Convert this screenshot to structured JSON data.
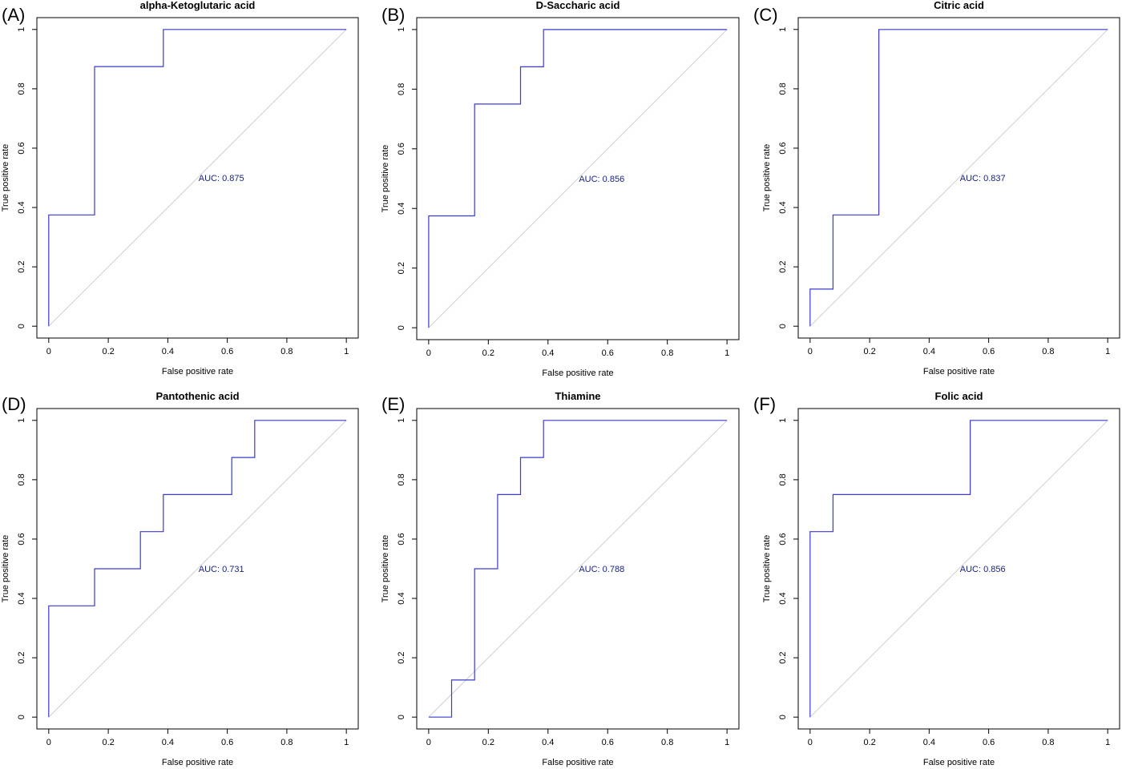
{
  "chart_data": [
    {
      "type": "line",
      "panel": "(A)",
      "title": "alpha-Ketoglutaric acid",
      "xlabel": "False positive rate",
      "ylabel": "True positive rate",
      "xlim": [
        0,
        1
      ],
      "ylim": [
        0,
        1
      ],
      "xticks": [
        "0",
        "0.2",
        "0.4",
        "0.6",
        "0.8",
        "1"
      ],
      "yticks": [
        "0",
        "0.2",
        "0.4",
        "0.6",
        "0.8",
        "1"
      ],
      "annotation": "AUC: 0.875",
      "x": [
        0,
        0,
        0.154,
        0.154,
        0.385,
        0.385,
        1
      ],
      "y": [
        0,
        0.375,
        0.375,
        0.875,
        0.875,
        1,
        1
      ]
    },
    {
      "type": "line",
      "panel": "(B)",
      "title": "D-Saccharic acid",
      "xlabel": "False positive rate",
      "ylabel": "True positive rate",
      "xlim": [
        0,
        1
      ],
      "ylim": [
        0,
        1
      ],
      "xticks": [
        "0",
        "0.2",
        "0.4",
        "0.6",
        "0.8",
        "1"
      ],
      "yticks": [
        "0",
        "0.2",
        "0.4",
        "0.6",
        "0.8",
        "1"
      ],
      "annotation": "AUC: 0.856",
      "x": [
        0,
        0,
        0.154,
        0.154,
        0.308,
        0.308,
        0.385,
        0.385,
        1
      ],
      "y": [
        0,
        0.375,
        0.375,
        0.75,
        0.75,
        0.875,
        0.875,
        1,
        1
      ]
    },
    {
      "type": "line",
      "panel": "(C)",
      "title": "Citric acid",
      "xlabel": "False positive rate",
      "ylabel": "True positive rate",
      "xlim": [
        0,
        1
      ],
      "ylim": [
        0,
        1
      ],
      "xticks": [
        "0",
        "0.2",
        "0.4",
        "0.6",
        "0.8",
        "1"
      ],
      "yticks": [
        "0",
        "0.2",
        "0.4",
        "0.6",
        "0.8",
        "1"
      ],
      "annotation": "AUC: 0.837",
      "x": [
        0,
        0,
        0.077,
        0.077,
        0.231,
        0.231,
        1
      ],
      "y": [
        0,
        0.125,
        0.125,
        0.375,
        0.375,
        1,
        1
      ]
    },
    {
      "type": "line",
      "panel": "(D)",
      "title": "Pantothenic acid",
      "xlabel": "False positive rate",
      "ylabel": "True positive rate",
      "xlim": [
        0,
        1
      ],
      "ylim": [
        0,
        1
      ],
      "xticks": [
        "0",
        "0.2",
        "0.4",
        "0.6",
        "0.8",
        "1"
      ],
      "yticks": [
        "0",
        "0.2",
        "0.4",
        "0.6",
        "0.8",
        "1"
      ],
      "annotation": "AUC: 0.731",
      "x": [
        0,
        0,
        0.154,
        0.154,
        0.308,
        0.308,
        0.385,
        0.385,
        0.615,
        0.615,
        0.692,
        0.692,
        1
      ],
      "y": [
        0,
        0.375,
        0.375,
        0.5,
        0.5,
        0.625,
        0.625,
        0.75,
        0.75,
        0.875,
        0.875,
        1,
        1
      ]
    },
    {
      "type": "line",
      "panel": "(E)",
      "title": "Thiamine",
      "xlabel": "False positive rate",
      "ylabel": "True positive rate",
      "xlim": [
        0,
        1
      ],
      "ylim": [
        0,
        1
      ],
      "xticks": [
        "0",
        "0.2",
        "0.4",
        "0.6",
        "0.8",
        "1"
      ],
      "yticks": [
        "0",
        "0.2",
        "0.4",
        "0.6",
        "0.8",
        "1"
      ],
      "annotation": "AUC: 0.788",
      "x": [
        0,
        0.077,
        0.077,
        0.154,
        0.154,
        0.231,
        0.231,
        0.308,
        0.308,
        0.385,
        0.385,
        1
      ],
      "y": [
        0,
        0,
        0.125,
        0.125,
        0.5,
        0.5,
        0.75,
        0.75,
        0.875,
        0.875,
        1,
        1
      ]
    },
    {
      "type": "line",
      "panel": "(F)",
      "title": "Folic acid",
      "xlabel": "False positive rate",
      "ylabel": "True positive rate",
      "xlim": [
        0,
        1
      ],
      "ylim": [
        0,
        1
      ],
      "xticks": [
        "0",
        "0.2",
        "0.4",
        "0.6",
        "0.8",
        "1"
      ],
      "yticks": [
        "0",
        "0.2",
        "0.4",
        "0.6",
        "0.8",
        "1"
      ],
      "annotation": "AUC: 0.856",
      "x": [
        0,
        0,
        0.077,
        0.077,
        0.538,
        0.538,
        1
      ],
      "y": [
        0,
        0.625,
        0.625,
        0.75,
        0.75,
        1,
        1
      ]
    }
  ],
  "colors": {
    "roc_line": "#3a3ad0",
    "diagonal": "#cfcfcf",
    "auc_text": "#1a237e"
  }
}
